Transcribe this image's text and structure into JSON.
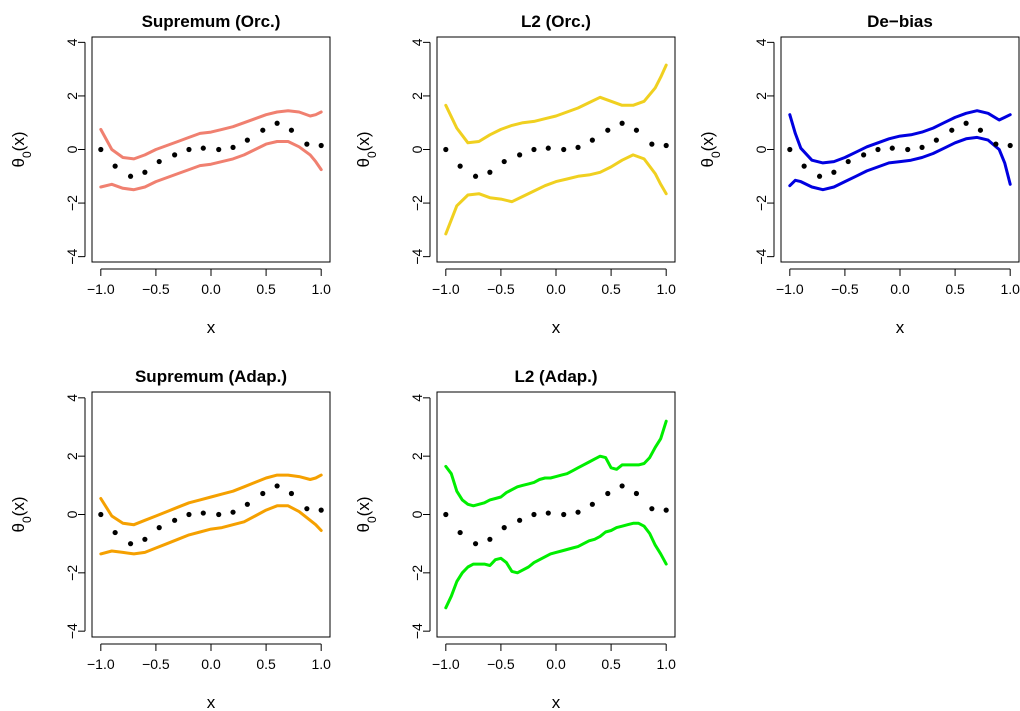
{
  "figure": {
    "background": "#ffffff",
    "point_color": "#000000"
  },
  "chart_data": [
    {
      "type": "line",
      "title": "Supremum (Orc.)",
      "xlabel": "x",
      "ylabel": "θ0(x)",
      "xlim": [
        -1.0,
        1.0
      ],
      "ylim": [
        -4.2,
        4.2
      ],
      "xticks": [
        "−1.0",
        "−0.5",
        "0.0",
        "0.5",
        "1.0"
      ],
      "yticks": [
        "−4",
        "−2",
        "0",
        "2",
        "4"
      ],
      "color": "#f08070",
      "points": {
        "x": [
          -1.0,
          -0.87,
          -0.73,
          -0.6,
          -0.47,
          -0.33,
          -0.2,
          -0.07,
          0.07,
          0.2,
          0.33,
          0.47,
          0.6,
          0.73,
          0.87,
          1.0
        ],
        "y": [
          0.0,
          -0.62,
          -1.0,
          -0.85,
          -0.45,
          -0.2,
          0.0,
          0.05,
          0.0,
          0.08,
          0.35,
          0.72,
          0.98,
          0.72,
          0.2,
          0.15
        ]
      },
      "series": [
        {
          "x": [
            -1.0,
            -0.9,
            -0.8,
            -0.7,
            -0.6,
            -0.5,
            -0.4,
            -0.3,
            -0.2,
            -0.1,
            0.0,
            0.1,
            0.2,
            0.3,
            0.4,
            0.5,
            0.6,
            0.7,
            0.8,
            0.9,
            0.95,
            1.0
          ],
          "y": [
            0.75,
            0.0,
            -0.3,
            -0.35,
            -0.2,
            0.0,
            0.15,
            0.3,
            0.45,
            0.6,
            0.65,
            0.75,
            0.85,
            1.0,
            1.15,
            1.3,
            1.4,
            1.45,
            1.4,
            1.25,
            1.3,
            1.4
          ]
        },
        {
          "x": [
            -1.0,
            -0.9,
            -0.8,
            -0.7,
            -0.6,
            -0.5,
            -0.4,
            -0.3,
            -0.2,
            -0.1,
            0.0,
            0.1,
            0.2,
            0.3,
            0.4,
            0.5,
            0.6,
            0.7,
            0.8,
            0.9,
            0.95,
            1.0
          ],
          "y": [
            -1.4,
            -1.3,
            -1.45,
            -1.5,
            -1.4,
            -1.2,
            -1.05,
            -0.9,
            -0.75,
            -0.6,
            -0.55,
            -0.45,
            -0.35,
            -0.2,
            0.0,
            0.2,
            0.3,
            0.3,
            0.1,
            -0.2,
            -0.45,
            -0.75
          ]
        }
      ]
    },
    {
      "type": "line",
      "title": "L2 (Orc.)",
      "xlabel": "x",
      "ylabel": "θ0(x)",
      "xlim": [
        -1.0,
        1.0
      ],
      "ylim": [
        -4.2,
        4.2
      ],
      "xticks": [
        "−1.0",
        "−0.5",
        "0.0",
        "0.5",
        "1.0"
      ],
      "yticks": [
        "−4",
        "−2",
        "0",
        "2",
        "4"
      ],
      "color": "#f0d020",
      "points": {
        "x": [
          -1.0,
          -0.87,
          -0.73,
          -0.6,
          -0.47,
          -0.33,
          -0.2,
          -0.07,
          0.07,
          0.2,
          0.33,
          0.47,
          0.6,
          0.73,
          0.87,
          1.0
        ],
        "y": [
          0.0,
          -0.62,
          -1.0,
          -0.85,
          -0.45,
          -0.2,
          0.0,
          0.05,
          0.0,
          0.08,
          0.35,
          0.72,
          0.98,
          0.72,
          0.2,
          0.15
        ]
      },
      "series": [
        {
          "x": [
            -1.0,
            -0.9,
            -0.8,
            -0.7,
            -0.6,
            -0.5,
            -0.4,
            -0.3,
            -0.2,
            -0.1,
            0.0,
            0.1,
            0.2,
            0.3,
            0.4,
            0.5,
            0.6,
            0.7,
            0.8,
            0.9,
            0.95,
            1.0
          ],
          "y": [
            1.65,
            0.8,
            0.25,
            0.3,
            0.55,
            0.75,
            0.9,
            1.0,
            1.05,
            1.15,
            1.25,
            1.4,
            1.55,
            1.75,
            1.95,
            1.8,
            1.65,
            1.65,
            1.8,
            2.3,
            2.7,
            3.15
          ]
        },
        {
          "x": [
            -1.0,
            -0.9,
            -0.8,
            -0.7,
            -0.6,
            -0.5,
            -0.4,
            -0.3,
            -0.2,
            -0.1,
            0.0,
            0.1,
            0.2,
            0.3,
            0.4,
            0.5,
            0.6,
            0.7,
            0.8,
            0.9,
            0.95,
            1.0
          ],
          "y": [
            -3.15,
            -2.1,
            -1.7,
            -1.65,
            -1.8,
            -1.85,
            -1.95,
            -1.75,
            -1.55,
            -1.35,
            -1.2,
            -1.1,
            -1.0,
            -0.95,
            -0.85,
            -0.65,
            -0.4,
            -0.2,
            -0.35,
            -0.9,
            -1.3,
            -1.65
          ]
        }
      ]
    },
    {
      "type": "line",
      "title": "De−bias",
      "xlabel": "x",
      "ylabel": "θ0(x)",
      "xlim": [
        -1.0,
        1.0
      ],
      "ylim": [
        -4.2,
        4.2
      ],
      "xticks": [
        "−1.0",
        "−0.5",
        "0.0",
        "0.5",
        "1.0"
      ],
      "yticks": [
        "−4",
        "−2",
        "0",
        "2",
        "4"
      ],
      "color": "#0000e0",
      "points": {
        "x": [
          -1.0,
          -0.87,
          -0.73,
          -0.6,
          -0.47,
          -0.33,
          -0.2,
          -0.07,
          0.07,
          0.2,
          0.33,
          0.47,
          0.6,
          0.73,
          0.87,
          1.0
        ],
        "y": [
          0.0,
          -0.62,
          -1.0,
          -0.85,
          -0.45,
          -0.2,
          0.0,
          0.05,
          0.0,
          0.08,
          0.35,
          0.72,
          0.98,
          0.72,
          0.2,
          0.15
        ]
      },
      "series": [
        {
          "x": [
            -1.0,
            -0.95,
            -0.9,
            -0.8,
            -0.7,
            -0.6,
            -0.5,
            -0.4,
            -0.3,
            -0.2,
            -0.1,
            0.0,
            0.1,
            0.2,
            0.3,
            0.4,
            0.5,
            0.6,
            0.7,
            0.8,
            0.9,
            0.95,
            1.0
          ],
          "y": [
            1.3,
            0.6,
            0.05,
            -0.4,
            -0.5,
            -0.45,
            -0.3,
            -0.1,
            0.1,
            0.25,
            0.4,
            0.5,
            0.55,
            0.65,
            0.8,
            1.0,
            1.2,
            1.35,
            1.45,
            1.35,
            1.1,
            1.2,
            1.3
          ]
        },
        {
          "x": [
            -1.0,
            -0.95,
            -0.9,
            -0.8,
            -0.7,
            -0.6,
            -0.5,
            -0.4,
            -0.3,
            -0.2,
            -0.1,
            0.0,
            0.1,
            0.2,
            0.3,
            0.4,
            0.5,
            0.6,
            0.7,
            0.8,
            0.9,
            0.95,
            1.0
          ],
          "y": [
            -1.35,
            -1.15,
            -1.2,
            -1.4,
            -1.5,
            -1.4,
            -1.2,
            -1.0,
            -0.8,
            -0.65,
            -0.5,
            -0.45,
            -0.4,
            -0.3,
            -0.15,
            0.05,
            0.25,
            0.4,
            0.45,
            0.35,
            0.0,
            -0.5,
            -1.3
          ]
        }
      ]
    },
    {
      "type": "line",
      "title": "Supremum (Adap.)",
      "xlabel": "x",
      "ylabel": "θ0(x)",
      "xlim": [
        -1.0,
        1.0
      ],
      "ylim": [
        -4.2,
        4.2
      ],
      "xticks": [
        "−1.0",
        "−0.5",
        "0.0",
        "0.5",
        "1.0"
      ],
      "yticks": [
        "−4",
        "−2",
        "0",
        "2",
        "4"
      ],
      "color": "#f5a000",
      "points": {
        "x": [
          -1.0,
          -0.87,
          -0.73,
          -0.6,
          -0.47,
          -0.33,
          -0.2,
          -0.07,
          0.07,
          0.2,
          0.33,
          0.47,
          0.6,
          0.73,
          0.87,
          1.0
        ],
        "y": [
          0.0,
          -0.62,
          -1.0,
          -0.85,
          -0.45,
          -0.2,
          0.0,
          0.05,
          0.0,
          0.08,
          0.35,
          0.72,
          0.98,
          0.72,
          0.2,
          0.15
        ]
      },
      "series": [
        {
          "x": [
            -1.0,
            -0.9,
            -0.8,
            -0.7,
            -0.6,
            -0.5,
            -0.4,
            -0.3,
            -0.2,
            -0.1,
            0.0,
            0.1,
            0.2,
            0.3,
            0.4,
            0.5,
            0.6,
            0.7,
            0.8,
            0.9,
            0.95,
            1.0
          ],
          "y": [
            0.55,
            -0.05,
            -0.3,
            -0.35,
            -0.2,
            -0.05,
            0.1,
            0.25,
            0.4,
            0.5,
            0.6,
            0.7,
            0.8,
            0.95,
            1.1,
            1.25,
            1.35,
            1.35,
            1.3,
            1.2,
            1.25,
            1.35
          ]
        },
        {
          "x": [
            -1.0,
            -0.9,
            -0.8,
            -0.7,
            -0.6,
            -0.5,
            -0.4,
            -0.3,
            -0.2,
            -0.1,
            0.0,
            0.1,
            0.2,
            0.3,
            0.4,
            0.5,
            0.6,
            0.7,
            0.8,
            0.9,
            0.95,
            1.0
          ],
          "y": [
            -1.35,
            -1.25,
            -1.3,
            -1.35,
            -1.3,
            -1.15,
            -1.0,
            -0.85,
            -0.7,
            -0.6,
            -0.5,
            -0.45,
            -0.35,
            -0.25,
            -0.05,
            0.15,
            0.3,
            0.3,
            0.1,
            -0.2,
            -0.35,
            -0.55
          ]
        }
      ]
    },
    {
      "type": "line",
      "title": "L2 (Adap.)",
      "xlabel": "x",
      "ylabel": "θ0(x)",
      "xlim": [
        -1.0,
        1.0
      ],
      "ylim": [
        -4.2,
        4.2
      ],
      "xticks": [
        "−1.0",
        "−0.5",
        "0.0",
        "0.5",
        "1.0"
      ],
      "yticks": [
        "−4",
        "−2",
        "0",
        "2",
        "4"
      ],
      "color": "#00ee00",
      "points": {
        "x": [
          -1.0,
          -0.87,
          -0.73,
          -0.6,
          -0.47,
          -0.33,
          -0.2,
          -0.07,
          0.07,
          0.2,
          0.33,
          0.47,
          0.6,
          0.73,
          0.87,
          1.0
        ],
        "y": [
          0.0,
          -0.62,
          -1.0,
          -0.85,
          -0.45,
          -0.2,
          0.0,
          0.05,
          0.0,
          0.08,
          0.35,
          0.72,
          0.98,
          0.72,
          0.2,
          0.15
        ]
      },
      "series": [
        {
          "x": [
            -1.0,
            -0.95,
            -0.9,
            -0.85,
            -0.8,
            -0.75,
            -0.7,
            -0.65,
            -0.6,
            -0.55,
            -0.5,
            -0.45,
            -0.4,
            -0.35,
            -0.3,
            -0.25,
            -0.2,
            -0.15,
            -0.1,
            -0.05,
            0.0,
            0.05,
            0.1,
            0.15,
            0.2,
            0.25,
            0.3,
            0.35,
            0.4,
            0.45,
            0.5,
            0.55,
            0.6,
            0.65,
            0.7,
            0.75,
            0.8,
            0.85,
            0.9,
            0.95,
            1.0
          ],
          "y": [
            1.65,
            1.4,
            0.8,
            0.5,
            0.35,
            0.3,
            0.35,
            0.4,
            0.5,
            0.55,
            0.6,
            0.75,
            0.85,
            0.95,
            1.0,
            1.05,
            1.1,
            1.2,
            1.25,
            1.25,
            1.3,
            1.35,
            1.4,
            1.5,
            1.6,
            1.7,
            1.8,
            1.9,
            2.0,
            1.95,
            1.6,
            1.55,
            1.7,
            1.7,
            1.7,
            1.7,
            1.75,
            1.95,
            2.3,
            2.6,
            3.2
          ]
        },
        {
          "x": [
            -1.0,
            -0.95,
            -0.9,
            -0.85,
            -0.8,
            -0.75,
            -0.7,
            -0.65,
            -0.6,
            -0.55,
            -0.5,
            -0.45,
            -0.4,
            -0.35,
            -0.3,
            -0.25,
            -0.2,
            -0.15,
            -0.1,
            -0.05,
            0.0,
            0.05,
            0.1,
            0.15,
            0.2,
            0.25,
            0.3,
            0.35,
            0.4,
            0.45,
            0.5,
            0.55,
            0.6,
            0.65,
            0.7,
            0.75,
            0.8,
            0.85,
            0.9,
            0.95,
            1.0
          ],
          "y": [
            -3.2,
            -2.8,
            -2.3,
            -2.0,
            -1.8,
            -1.7,
            -1.7,
            -1.7,
            -1.75,
            -1.55,
            -1.5,
            -1.65,
            -1.95,
            -2.0,
            -1.9,
            -1.8,
            -1.65,
            -1.55,
            -1.45,
            -1.35,
            -1.3,
            -1.25,
            -1.2,
            -1.15,
            -1.1,
            -1.0,
            -0.9,
            -0.85,
            -0.75,
            -0.6,
            -0.55,
            -0.45,
            -0.4,
            -0.35,
            -0.3,
            -0.3,
            -0.4,
            -0.65,
            -1.05,
            -1.35,
            -1.7
          ]
        }
      ]
    }
  ]
}
